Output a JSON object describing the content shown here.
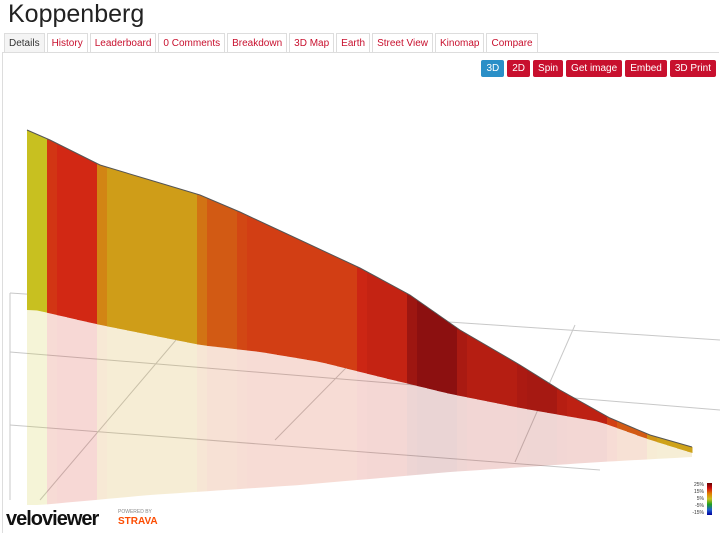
{
  "header": {
    "title": "Koppenberg"
  },
  "tabs": [
    "Details",
    "History",
    "Leaderboard",
    "0 Comments",
    "Breakdown",
    "3D Map",
    "Earth",
    "Street View",
    "Kinomap",
    "Compare"
  ],
  "buttons": [
    "3D",
    "2D",
    "Spin",
    "Get image",
    "Embed",
    "3D Print"
  ],
  "legend": {
    "labels": [
      "25%",
      "15%",
      "5%",
      "-5%",
      "-15%"
    ]
  },
  "logo": {
    "name": "veloviewer",
    "powered": "POWERED BY",
    "partner": "STRAVA"
  }
}
